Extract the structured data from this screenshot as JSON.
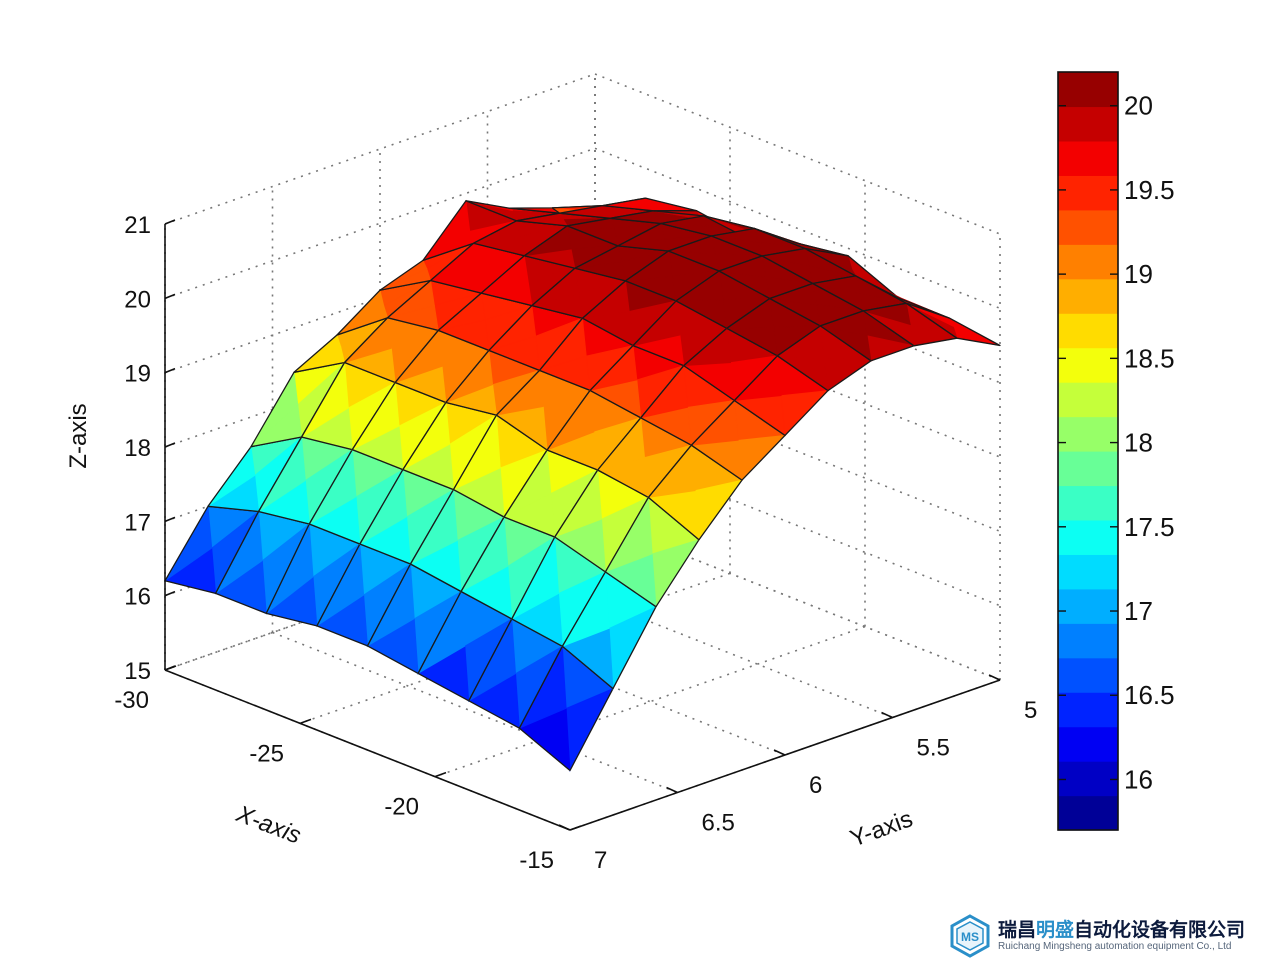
{
  "chart_data": {
    "type": "surface",
    "xlabel": "X-axis",
    "ylabel": "Y-axis",
    "zlabel": "Z-axis",
    "xlim": [
      -30,
      -15
    ],
    "ylim": [
      5,
      7
    ],
    "zlim": [
      15,
      21
    ],
    "x_ticks": [
      "-30",
      "-25",
      "-20",
      "-15"
    ],
    "y_ticks": [
      "5",
      "5.5",
      "6",
      "6.5",
      "7"
    ],
    "z_ticks": [
      "15",
      "16",
      "17",
      "18",
      "19",
      "20",
      "21"
    ],
    "grid": true,
    "colorbar": {
      "range": [
        15.7,
        20.2
      ],
      "ticks": [
        "16",
        "16.5",
        "17",
        "17.5",
        "18",
        "18.5",
        "19",
        "19.5",
        "20"
      ],
      "colormap": "jet",
      "levels": 22
    },
    "x_grid": [
      -30,
      -28.125,
      -26.25,
      -24.375,
      -22.5,
      -20.625,
      -18.75,
      -16.875,
      -15
    ],
    "y_grid": [
      5,
      5.2,
      5.4,
      5.6,
      5.8,
      6,
      6.2,
      6.4,
      6.6,
      6.8,
      7
    ],
    "z": [
      [
        18.8,
        19.4,
        19.6,
        19.9,
        19.3,
        19.1,
        18.7,
        18.4,
        17.6,
        17.0,
        16.2
      ],
      [
        19.6,
        19.7,
        19.8,
        19.9,
        19.8,
        19.5,
        19.2,
        18.8,
        18.0,
        17.2,
        16.3
      ],
      [
        19.7,
        19.9,
        20.0,
        20.1,
        19.9,
        19.6,
        19.3,
        18.8,
        18.1,
        17.3,
        16.3
      ],
      [
        19.6,
        20.1,
        20.2,
        20.1,
        20.0,
        19.7,
        19.3,
        18.8,
        18.1,
        17.3,
        16.4
      ],
      [
        19.8,
        20.2,
        20.3,
        20.3,
        20.1,
        19.8,
        19.3,
        18.9,
        18.1,
        17.3,
        16.4
      ],
      [
        19.9,
        20.2,
        20.3,
        20.3,
        20.1,
        19.7,
        19.3,
        18.7,
        18.0,
        17.2,
        16.3
      ],
      [
        19.6,
        20.1,
        20.2,
        20.2,
        20.0,
        19.7,
        19.2,
        18.7,
        18.0,
        17.1,
        16.2
      ],
      [
        19.6,
        20.0,
        20.1,
        20.1,
        19.9,
        19.5,
        19.1,
        18.6,
        17.8,
        17.0,
        16.1
      ],
      [
        19.5,
        19.8,
        19.9,
        19.9,
        19.7,
        19.3,
        18.9,
        18.3,
        17.6,
        16.7,
        15.8
      ]
    ]
  },
  "watermark": {
    "company_cn_part1": "瑞昌",
    "company_cn_highlight": "明盛",
    "company_cn_part2": "自动化设备有限公司",
    "company_en": "Ruichang Mingsheng automation equipment Co., Ltd",
    "logo_letters": "MS",
    "logo_color": "#2a8fc9"
  }
}
